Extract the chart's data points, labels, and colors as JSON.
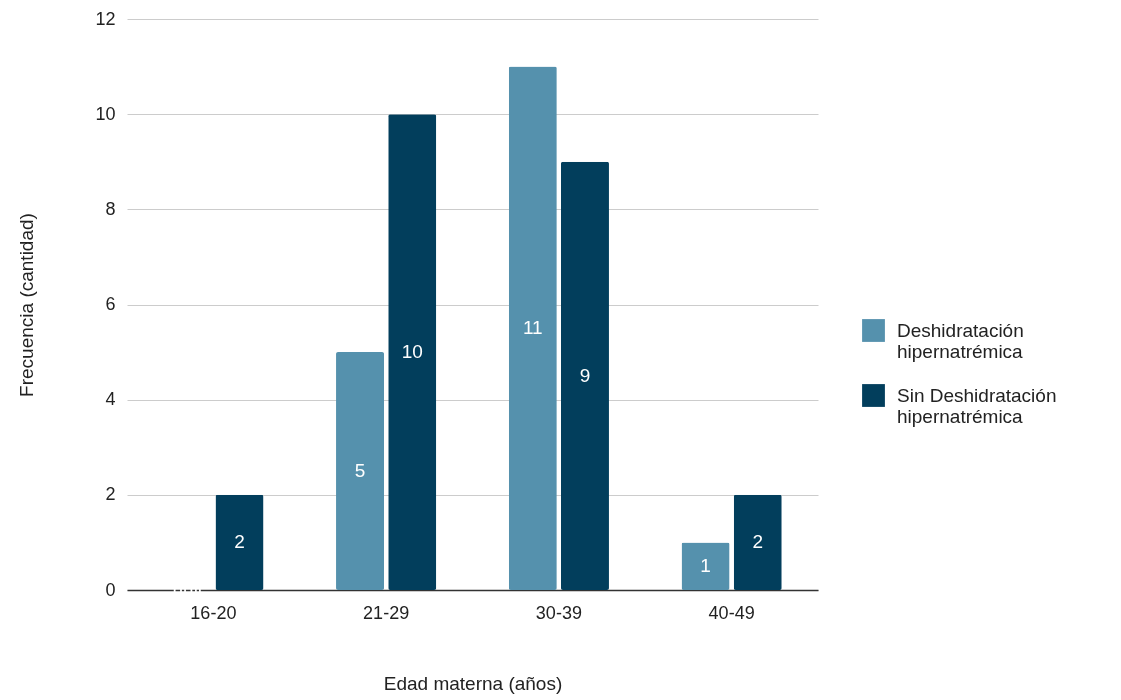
{
  "chart_data": {
    "type": "bar",
    "xlabel": "Edad materna (años)",
    "ylabel": "Frecuencia (cantidad)",
    "categories": [
      "16-20",
      "21-29",
      "30-39",
      "40-49"
    ],
    "series": [
      {
        "name": "Deshidratación hipernatrémica",
        "color": "#5591ad",
        "values": [
          0,
          5,
          11,
          1
        ],
        "value_labels": [
          null,
          "5",
          "11",
          "1"
        ]
      },
      {
        "name": "Sin Deshidratación hipernatrémica",
        "color": "#023e5c",
        "values": [
          2,
          10,
          9,
          2
        ],
        "value_labels": [
          "2",
          "10",
          "9",
          "2"
        ]
      }
    ],
    "ylim": [
      0,
      12
    ],
    "yticks": [
      0,
      2,
      4,
      6,
      8,
      10,
      12
    ],
    "grid": "y",
    "legend": "right"
  }
}
